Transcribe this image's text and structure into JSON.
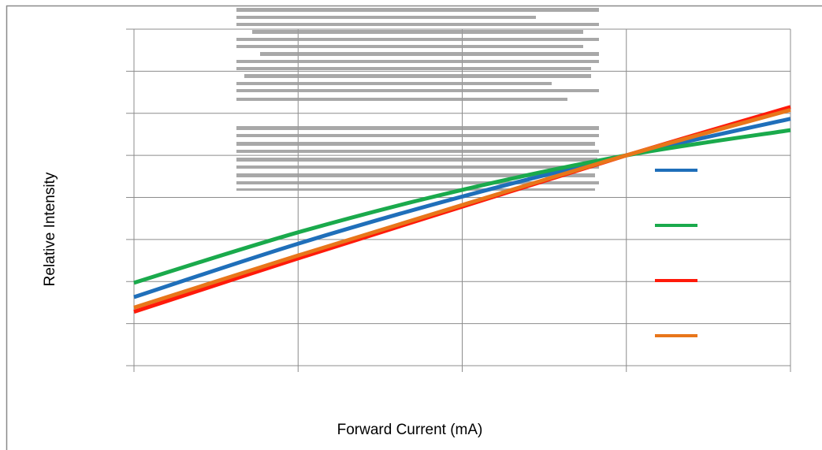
{
  "chart_data": {
    "type": "line",
    "xlabel": "Forward Current (mA)",
    "ylabel": "Relative Intensity",
    "x_gridlines": 5,
    "y_gridlines": 9,
    "grid": true,
    "legend_placement": "right",
    "xlim": [
      0,
      4
    ],
    "ylim": [
      0,
      8
    ],
    "x": [
      0,
      1,
      2,
      3,
      4
    ],
    "series": [
      {
        "color": "#1f6fba",
        "values": [
          1.63,
          2.9,
          4.02,
          5.0,
          5.87
        ]
      },
      {
        "color": "#1aaa4c",
        "values": [
          1.97,
          3.17,
          4.18,
          5.0,
          5.6
        ]
      },
      {
        "color": "#ff1a0a",
        "values": [
          1.28,
          2.55,
          3.78,
          5.0,
          6.15
        ]
      },
      {
        "color": "#e8761a",
        "values": [
          1.38,
          2.62,
          3.82,
          5.0,
          6.08
        ]
      }
    ]
  },
  "watermark": {
    "description": "grey striped brand logo"
  }
}
